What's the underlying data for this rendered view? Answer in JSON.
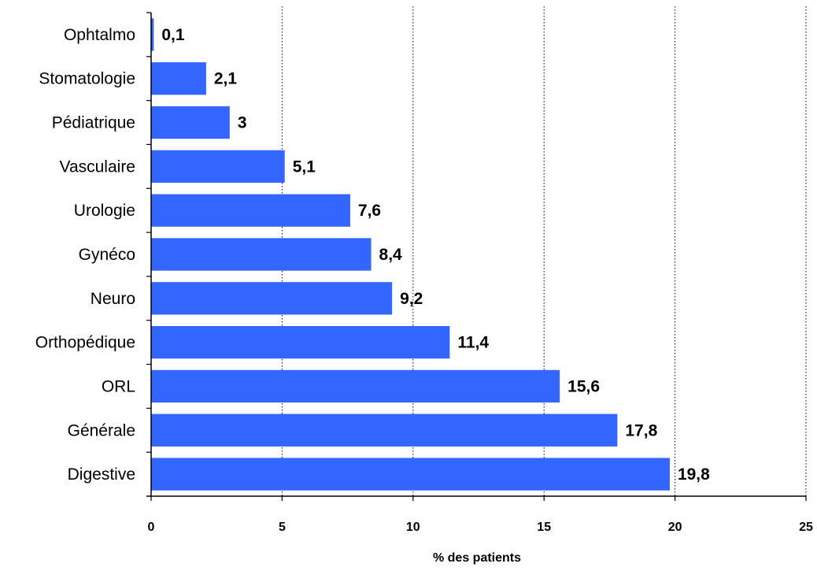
{
  "chart_data": {
    "type": "bar",
    "orientation": "horizontal",
    "categories": [
      "Ophtalmo",
      "Stomatologie",
      "Pédiatrique",
      "Vasculaire",
      "Urologie",
      "Gynéco",
      "Neuro",
      "Orthopédique",
      "ORL",
      "Générale",
      "Digestive"
    ],
    "values": [
      0.1,
      2.1,
      3,
      5.1,
      7.6,
      8.4,
      9.2,
      11.4,
      15.6,
      17.8,
      19.8
    ],
    "value_labels": [
      "0,1",
      "2,1",
      "3",
      "5,1",
      "7,6",
      "8,4",
      "9,2",
      "11,4",
      "15,6",
      "17,8",
      "19,8"
    ],
    "title": "",
    "xlabel": "% des patients",
    "ylabel": "",
    "xlim": [
      0,
      25
    ],
    "x_ticks": [
      "0",
      "5",
      "10",
      "15",
      "20",
      "25"
    ],
    "grid": "vertical dotted",
    "legend": "none",
    "bar_color": "#3366FF"
  }
}
